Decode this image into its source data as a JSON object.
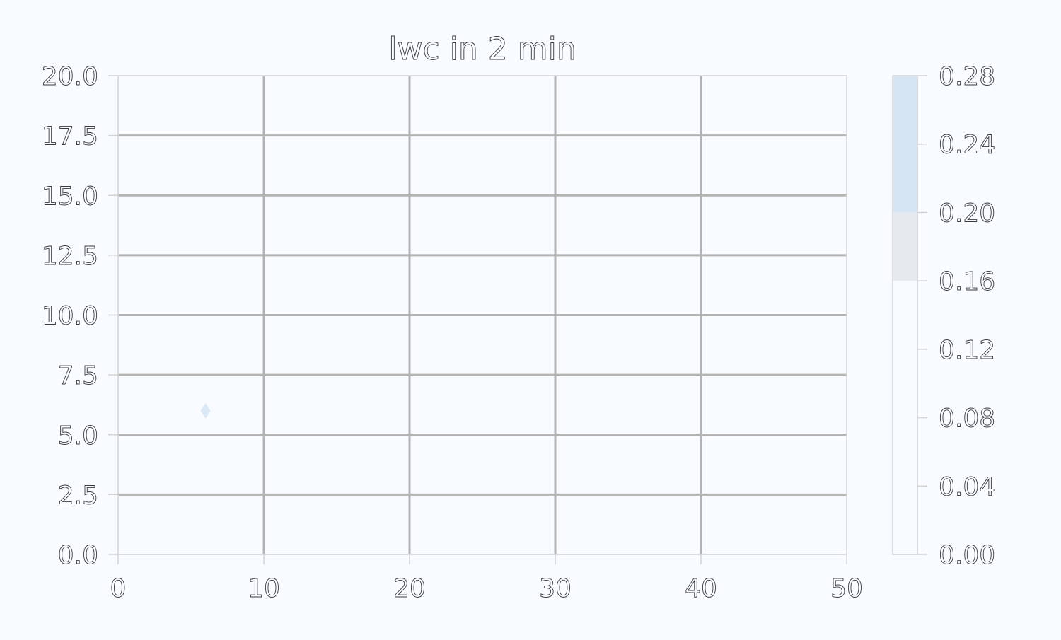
{
  "chart_data": {
    "type": "heatmap",
    "title": "lwc in 2 min",
    "xlabel": "",
    "ylabel": "",
    "xlim": [
      0,
      50
    ],
    "ylim": [
      0,
      20
    ],
    "x_ticks": [
      "0",
      "10",
      "20",
      "30",
      "40",
      "50"
    ],
    "y_ticks": [
      "0.0",
      "2.5",
      "5.0",
      "7.5",
      "10.0",
      "12.5",
      "15.0",
      "17.5",
      "20.0"
    ],
    "grid": true,
    "points": [
      {
        "x": 6,
        "y": 6,
        "marker": "diamond",
        "color": "#dbe8f5"
      }
    ],
    "colorbar": {
      "range": [
        0,
        0.28
      ],
      "ticks": [
        "0.00",
        "0.04",
        "0.08",
        "0.12",
        "0.16",
        "0.20",
        "0.24",
        "0.28"
      ],
      "bands": [
        {
          "from": 0.0,
          "to": 0.16,
          "color": "#f8fbff"
        },
        {
          "from": 0.16,
          "to": 0.2,
          "color": "#e6e9ee"
        },
        {
          "from": 0.2,
          "to": 0.28,
          "color": "#d6e5f3"
        }
      ]
    },
    "colors": {
      "background": "#f8fbff",
      "grid": "#b3b3b3",
      "axes": "#d3d3d3"
    }
  }
}
